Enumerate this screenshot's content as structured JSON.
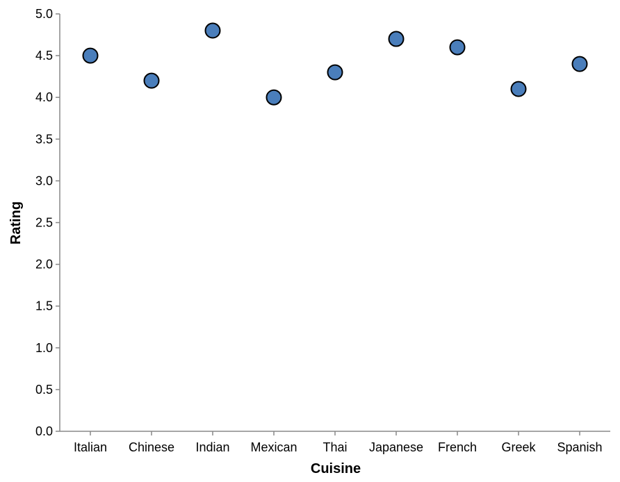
{
  "chart_data": {
    "type": "scatter",
    "xlabel": "Cuisine",
    "ylabel": "Rating",
    "categories": [
      "Italian",
      "Chinese",
      "Indian",
      "Mexican",
      "Thai",
      "Japanese",
      "French",
      "Greek",
      "Spanish"
    ],
    "values": [
      4.5,
      4.2,
      4.8,
      4.0,
      4.3,
      4.7,
      4.6,
      4.1,
      4.4
    ],
    "ylim": [
      0,
      5
    ],
    "yticks": [
      "0.0",
      "0.5",
      "1.0",
      "1.5",
      "2.0",
      "2.5",
      "3.0",
      "3.5",
      "4.0",
      "4.5",
      "5.0"
    ],
    "grid": false,
    "point_color": "#4a7ebb",
    "point_stroke": "#000000"
  }
}
